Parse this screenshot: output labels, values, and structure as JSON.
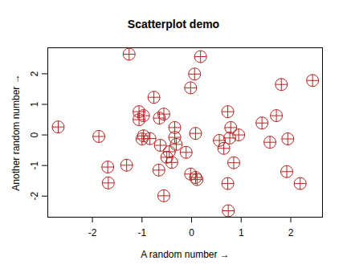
{
  "chart_data": {
    "type": "scatter",
    "title": "Scatterplot demo",
    "x_label": "A random number",
    "y_label": "Another random number",
    "x": [
      -1.26,
      0.18,
      0.06,
      -0.02,
      2.44,
      1.81,
      -0.76,
      1.42,
      1.71,
      -1.06,
      -0.97,
      -1.06,
      -0.65,
      -0.56,
      0.73,
      -0.34,
      0.79,
      -0.97,
      -1.0,
      -0.84,
      -1.87,
      -2.69,
      -0.34,
      -0.31,
      -0.63,
      -0.45,
      -0.4,
      -0.5,
      -0.11,
      0.56,
      0.65,
      0.77,
      0.95,
      1.58,
      1.94,
      0.85,
      -1.69,
      -1.68,
      -1.31,
      -0.66,
      -0.02,
      0.08,
      0.11,
      0.73,
      1.92,
      2.19,
      -0.56,
      0.74,
      0.08
    ],
    "values": [
      2.64,
      2.56,
      1.99,
      1.54,
      1.78,
      1.65,
      1.23,
      0.39,
      0.63,
      0.76,
      0.63,
      0.5,
      0.55,
      0.68,
      0.76,
      0.24,
      0.24,
      -0.03,
      -0.13,
      -0.12,
      -0.05,
      0.26,
      -0.08,
      -0.31,
      -0.34,
      -0.55,
      -0.9,
      -0.73,
      -0.57,
      -0.18,
      -0.44,
      -0.1,
      0.0,
      -0.24,
      -0.13,
      -0.91,
      -1.05,
      -1.57,
      -0.99,
      -1.15,
      -1.28,
      -1.39,
      -1.46,
      -1.59,
      -1.2,
      -1.59,
      -1.99,
      -2.48,
      0.05
    ],
    "color": "#b22222",
    "marker": "circle-plus",
    "xlim": [
      -2.9,
      2.64
    ],
    "ylim": [
      -2.69,
      2.85
    ],
    "xticks": [
      -2,
      -1,
      0,
      1,
      2
    ],
    "yticks": [
      -2,
      -1,
      0,
      1,
      2
    ],
    "grid": false
  }
}
